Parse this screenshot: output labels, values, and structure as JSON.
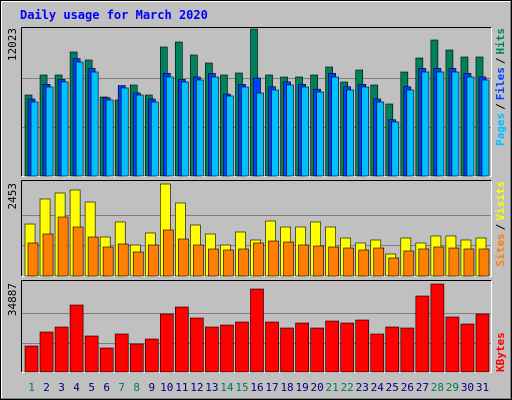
{
  "chart_data": {
    "type": "bar",
    "title": "Daily usage for March 2020",
    "legend_separator": "/",
    "categories": [
      "1",
      "2",
      "3",
      "4",
      "5",
      "6",
      "7",
      "8",
      "9",
      "10",
      "11",
      "12",
      "13",
      "14",
      "15",
      "16",
      "17",
      "18",
      "19",
      "20",
      "21",
      "22",
      "23",
      "24",
      "25",
      "26",
      "27",
      "28",
      "29",
      "30",
      "31"
    ],
    "category_colors": [
      "#008040",
      "#000080",
      "#000080",
      "#000080",
      "#000080",
      "#000080",
      "#008040",
      "#008040",
      "#000080",
      "#000080",
      "#000080",
      "#000080",
      "#000080",
      "#008040",
      "#008040",
      "#000080",
      "#000080",
      "#000080",
      "#000080",
      "#000080",
      "#008040",
      "#008040",
      "#000080",
      "#000080",
      "#000080",
      "#000080",
      "#000080",
      "#008040",
      "#008040",
      "#000080",
      "#000080"
    ],
    "panels": [
      {
        "ylim": [
          0,
          12023
        ],
        "yticks": [
          12023
        ],
        "gridlines": [
          4008,
          8015
        ],
        "series": [
          {
            "name": "Hits",
            "color": "#00805c",
            "values": [
              6625,
              8261,
              8261,
              10142,
              9488,
              6461,
              6216,
              7443,
              6625,
              10551,
              10960,
              9897,
              9242,
              8261,
              8424,
              12023,
              8261,
              8097,
              8097,
              8261,
              8915,
              7688,
              8670,
              7443,
              5889,
              8506,
              9651,
              11123,
              10306,
              9733,
              9733
            ]
          },
          {
            "name": "Files",
            "color": "#0040ff",
            "values": [
              6300,
              7500,
              7900,
              9600,
              8800,
              6400,
              7400,
              6800,
              6300,
              8400,
              7900,
              8100,
              8400,
              6700,
              7500,
              8016,
              7300,
              7700,
              7500,
              7100,
              8400,
              7300,
              7500,
              6300,
              4600,
              7300,
              8800,
              8800,
              8800,
              8400,
              8100
            ]
          },
          {
            "name": "Pages",
            "color": "#00c0ff",
            "values": [
              6053,
              7279,
              7688,
              9324,
              8506,
              6216,
              7198,
              6625,
              6053,
              8097,
              7688,
              7852,
              8097,
              6543,
              7279,
              6788,
              7034,
              7443,
              7279,
              6870,
              8097,
              7034,
              7279,
              6053,
              4417,
              7034,
              8506,
              8506,
              8506,
              8097,
              7852
            ]
          }
        ]
      },
      {
        "ylim": [
          0,
          2453
        ],
        "yticks": [
          2453
        ],
        "gridlines": [
          818,
          1635
        ],
        "series": [
          {
            "name": "Visits",
            "color": "#ffff00",
            "values": [
              1386,
              2053,
              2213,
              2293,
              1973,
              1040,
              1440,
              827,
              1147,
              2453,
              1946,
              1360,
              1120,
              827,
              1173,
              960,
              1466,
              1306,
              1306,
              1440,
              1306,
              1013,
              880,
              960,
              587,
              1013,
              880,
              1067,
              1067,
              960,
              1013
            ]
          },
          {
            "name": "Sites",
            "color": "#ff8000",
            "values": [
              880,
              1120,
              1573,
              1306,
              1040,
              773,
              853,
              640,
              827,
              1226,
              986,
              827,
              720,
              693,
              720,
              880,
              933,
              906,
              827,
              800,
              773,
              746,
              693,
              746,
              480,
              667,
              720,
              773,
              746,
              720,
              720
            ]
          }
        ]
      },
      {
        "ylim": [
          0,
          34887
        ],
        "yticks": [
          34887
        ],
        "gridlines": [
          11629,
          23258
        ],
        "series": [
          {
            "name": "KBytes",
            "color": "#ff0000",
            "values": [
              10307,
              15858,
              17840,
              26562,
              14272,
              9515,
              15065,
              11100,
              13083,
              22994,
              25769,
              21408,
              17840,
              18633,
              19822,
              32905,
              19822,
              17443,
              19426,
              17443,
              20219,
              19426,
              20615,
              15065,
              17840,
              17443,
              30130,
              34887,
              21805,
              19029,
              22994
            ]
          }
        ]
      }
    ]
  }
}
